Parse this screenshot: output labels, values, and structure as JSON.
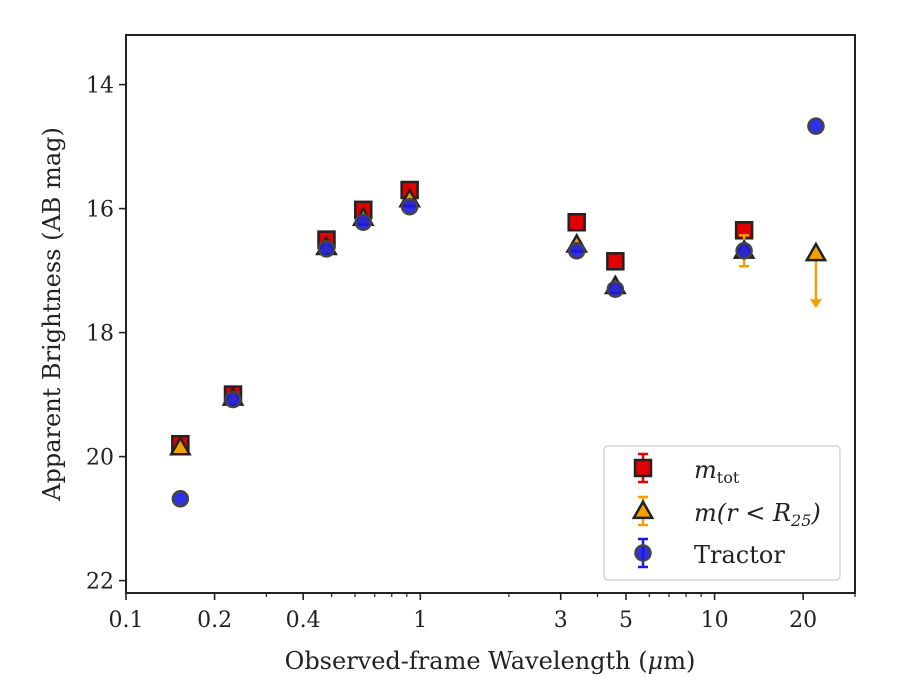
{
  "chart_data": {
    "type": "scatter",
    "xlabel_pre": "Observed-frame Wavelength (",
    "xlabel_mu": "μ",
    "xlabel_post": "m)",
    "ylabel": "Apparent Brightness (AB mag)",
    "xscale": "log",
    "xlim": [
      0.1,
      30
    ],
    "ylim": [
      22.2,
      13.2
    ],
    "y_inverted": true,
    "x_ticks": [
      0.1,
      0.2,
      0.4,
      1,
      3,
      5,
      10,
      20
    ],
    "x_tick_labels": [
      "0.1",
      "0.2",
      "0.4",
      "1",
      "3",
      "5",
      "10",
      "20"
    ],
    "y_ticks": [
      14,
      16,
      18,
      20,
      22
    ],
    "y_tick_labels": [
      "14",
      "16",
      "18",
      "20",
      "22"
    ],
    "legend_position": "lower-right",
    "series": [
      {
        "name_main": "m",
        "name_sub": "tot",
        "marker": "square",
        "color": "#e00000",
        "edge": "#222222",
        "errcolor": "#e00000",
        "points": [
          {
            "x": 0.153,
            "y": 19.8
          },
          {
            "x": 0.231,
            "y": 19.0
          },
          {
            "x": 0.48,
            "y": 16.5
          },
          {
            "x": 0.64,
            "y": 16.02
          },
          {
            "x": 0.92,
            "y": 15.7
          },
          {
            "x": 3.4,
            "y": 16.22
          },
          {
            "x": 4.6,
            "y": 16.85
          },
          {
            "x": 12.6,
            "y": 16.35
          }
        ]
      },
      {
        "name_text": "m(r < R",
        "name_sub": "25",
        "name_close": ")",
        "marker": "triangle",
        "color": "#f5a000",
        "edge": "#222222",
        "errcolor": "#f5a000",
        "points": [
          {
            "x": 0.153,
            "y": 19.85
          },
          {
            "x": 0.231,
            "y": 19.05
          },
          {
            "x": 0.48,
            "y": 16.62
          },
          {
            "x": 0.64,
            "y": 16.15
          },
          {
            "x": 0.92,
            "y": 15.85
          },
          {
            "x": 3.4,
            "y": 16.58
          },
          {
            "x": 4.6,
            "y": 17.25
          },
          {
            "x": 12.6,
            "y": 16.68,
            "err": 0.25
          },
          {
            "x": 22.1,
            "y": 16.72,
            "upper_limit": true
          }
        ]
      },
      {
        "name": "Tractor",
        "marker": "circle",
        "color": "#1a1ae6",
        "edge": "#444444",
        "errcolor": "#1a1ae6",
        "points": [
          {
            "x": 0.153,
            "y": 20.68
          },
          {
            "x": 0.231,
            "y": 19.08
          },
          {
            "x": 0.48,
            "y": 16.65
          },
          {
            "x": 0.64,
            "y": 16.22
          },
          {
            "x": 0.92,
            "y": 15.97
          },
          {
            "x": 3.4,
            "y": 16.68
          },
          {
            "x": 4.6,
            "y": 17.3
          },
          {
            "x": 12.6,
            "y": 16.68
          },
          {
            "x": 22.1,
            "y": 14.67
          }
        ]
      }
    ]
  }
}
